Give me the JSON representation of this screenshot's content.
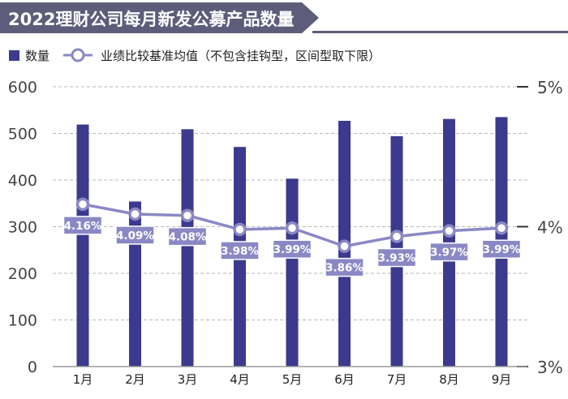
{
  "chart_data": {
    "type": "bar",
    "title": "2022理财公司每月新发公募产品数量",
    "categories": [
      "1月",
      "2月",
      "3月",
      "4月",
      "5月",
      "6月",
      "7月",
      "8月",
      "9月"
    ],
    "series": [
      {
        "name": "数量",
        "type": "bar",
        "axis": "left",
        "values": [
          519,
          354,
          509,
          471,
          403,
          527,
          494,
          531,
          535
        ]
      },
      {
        "name": "业绩比较基准均值（不包含挂钩型，区间型取下限）",
        "type": "line",
        "axis": "right",
        "values": [
          4.16,
          4.09,
          4.08,
          3.98,
          3.99,
          3.86,
          3.93,
          3.97,
          3.99
        ],
        "labels": [
          "4.16%",
          "4.09%",
          "4.08%",
          "3.98%",
          "3.99%",
          "3.86%",
          "3.93%",
          "3.97%",
          "3.99%"
        ]
      }
    ],
    "y_left": {
      "min": 0,
      "max": 600,
      "ticks": [
        0,
        100,
        200,
        300,
        400,
        500,
        600
      ],
      "tick_labels": [
        "0",
        "100",
        "200",
        "300",
        "400",
        "500",
        "600"
      ]
    },
    "y_right": {
      "min": 3,
      "max": 5,
      "ticks": [
        3,
        4,
        5
      ],
      "tick_labels": [
        "3%",
        "4%",
        "5%"
      ]
    },
    "grid": "dashed horizontal",
    "legend_position": "top-left",
    "colors": {
      "bar": "#3b3a8e",
      "line": "#8a88c4",
      "label_bg": "#8a88c4",
      "title_bg": "#5d5c7a",
      "axis": "#9a9a9a",
      "grid": "#b8b8b8",
      "tick_text": "#444444"
    }
  }
}
